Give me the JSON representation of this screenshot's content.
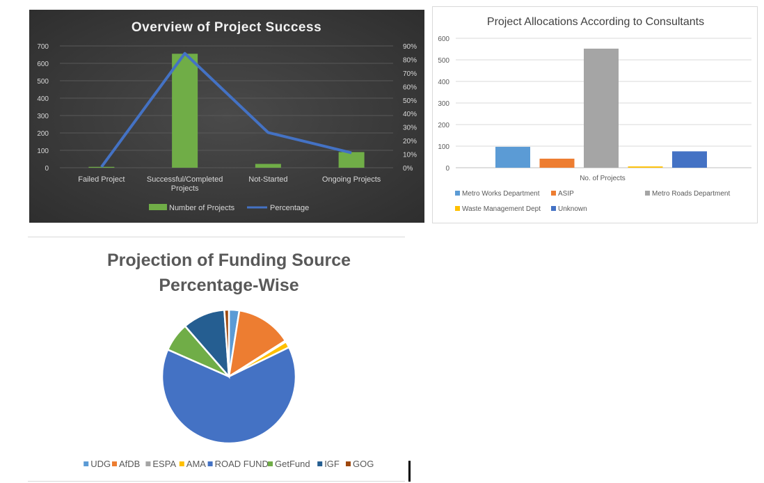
{
  "chart_data": [
    {
      "type": "bar",
      "title": "Overview of Project Success",
      "categories": [
        "Failed Project",
        "Successful/Completed Projects",
        "Not-Started",
        "Ongoing Projects"
      ],
      "category_lines": [
        [
          "Failed Project"
        ],
        [
          "Successful/Completed",
          "Projects"
        ],
        [
          "Not-Started"
        ],
        [
          "Ongoing Projects"
        ]
      ],
      "series": [
        {
          "name": "Number of Projects",
          "type": "bar",
          "axis": "left",
          "values": [
            5,
            655,
            22,
            90
          ],
          "color": "#70ad47"
        },
        {
          "name": "Percentage",
          "type": "line",
          "axis": "right",
          "values": [
            0.6,
            84.5,
            26,
            11
          ],
          "color": "#4472c4"
        }
      ],
      "ylim": [
        0,
        700
      ],
      "yticks": [
        0,
        100,
        200,
        300,
        400,
        500,
        600,
        700
      ],
      "y2lim": [
        0,
        90
      ],
      "y2ticks": [
        "0%",
        "10%",
        "20%",
        "30%",
        "40%",
        "50%",
        "60%",
        "70%",
        "80%",
        "90%"
      ],
      "legend_position": "bottom",
      "grid": true
    },
    {
      "type": "bar",
      "title": "Project Allocations According to Consultants",
      "xlabel": "No. of Projects",
      "series": [
        {
          "name": "Metro Works Department",
          "value": 97,
          "color": "#5b9bd5"
        },
        {
          "name": "ASIP",
          "value": 42,
          "color": "#ed7d31"
        },
        {
          "name": "Metro Roads Department",
          "value": 552,
          "color": "#a5a5a5"
        },
        {
          "name": "Waste Management Dept",
          "value": 6,
          "color": "#ffc000"
        },
        {
          "name": "Unknown",
          "value": 76,
          "color": "#4472c4"
        }
      ],
      "ylim": [
        0,
        600
      ],
      "yticks": [
        0,
        100,
        200,
        300,
        400,
        500,
        600
      ],
      "legend_position": "bottom",
      "grid": true
    },
    {
      "type": "pie",
      "title_lines": [
        "Projection of Funding Source",
        "Percentage-Wise"
      ],
      "slices": [
        {
          "name": "UDG",
          "value": 2.5,
          "color": "#5b9bd5"
        },
        {
          "name": "AfDB",
          "value": 13.5,
          "color": "#ed7d31"
        },
        {
          "name": "ESPA",
          "value": 0.3,
          "color": "#a5a5a5"
        },
        {
          "name": "AMA",
          "value": 1.5,
          "color": "#ffc000"
        },
        {
          "name": "ROAD FUND",
          "value": 63.8,
          "color": "#4472c4"
        },
        {
          "name": "GetFund",
          "value": 7.0,
          "color": "#70ad47"
        },
        {
          "name": "IGF",
          "value": 10.3,
          "color": "#255e91"
        },
        {
          "name": "GOG",
          "value": 1.1,
          "color": "#9e480e"
        }
      ],
      "legend_position": "bottom"
    }
  ]
}
